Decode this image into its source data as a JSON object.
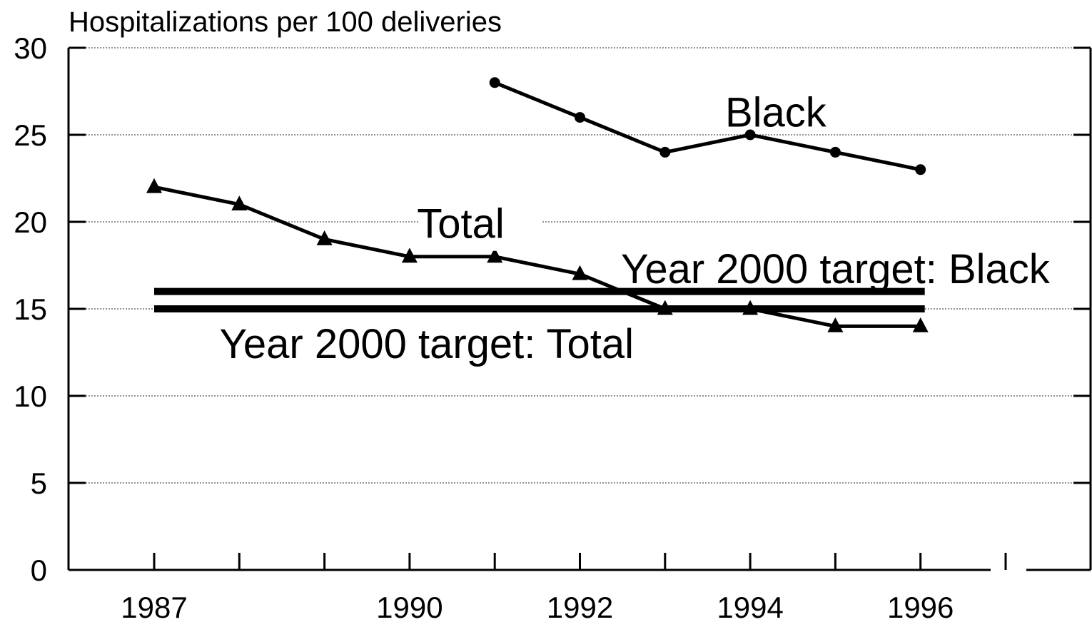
{
  "chart_data": {
    "type": "line",
    "ylabel": "Hospitalizations per 100 deliveries",
    "xlabel": "",
    "xlim": [
      1986,
      1998
    ],
    "ylim": [
      0,
      30
    ],
    "x_ticks": [
      1987,
      1988,
      1989,
      1990,
      1991,
      1992,
      1993,
      1994,
      1995,
      1996,
      1997
    ],
    "x_tick_labels": [
      {
        "x": 1987,
        "label": "1987"
      },
      {
        "x": 1990,
        "label": "1990"
      },
      {
        "x": 1992,
        "label": "1992"
      },
      {
        "x": 1994,
        "label": "1994"
      },
      {
        "x": 1996,
        "label": "1996"
      }
    ],
    "y_ticks": [
      0,
      5,
      10,
      15,
      20,
      25,
      30
    ],
    "grid": "horizontal dashed",
    "series": [
      {
        "name": "Total",
        "marker": "triangle",
        "x": [
          1987,
          1988,
          1989,
          1990,
          1991,
          1992,
          1993,
          1994,
          1995,
          1996
        ],
        "values": [
          22,
          21,
          19,
          18,
          18,
          17,
          15,
          15,
          14,
          14
        ]
      },
      {
        "name": "Black",
        "marker": "circle",
        "x": [
          1991,
          1992,
          1993,
          1994,
          1995,
          1996
        ],
        "values": [
          28,
          26,
          24,
          25,
          24,
          23
        ]
      }
    ],
    "targets": [
      {
        "label": "Year 2000 target: Black",
        "value": 16,
        "x_range": [
          1987,
          1996
        ]
      },
      {
        "label": "Year 2000 target: Total",
        "value": 15,
        "x_range": [
          1987,
          1996
        ]
      }
    ],
    "annotations": [
      {
        "text": "Black",
        "x": 1994.3,
        "y": 26.3
      },
      {
        "text": "Total",
        "x": 1990.6,
        "y": 19.9
      },
      {
        "text": "Year 2000 target: Black",
        "x": 1995.0,
        "y": 17.3
      },
      {
        "text": "Year 2000 target: Total",
        "x": 1990.2,
        "y": 13.0
      }
    ],
    "colors": {
      "line": "#000000",
      "grid": "#555555",
      "background": "#ffffff"
    }
  }
}
